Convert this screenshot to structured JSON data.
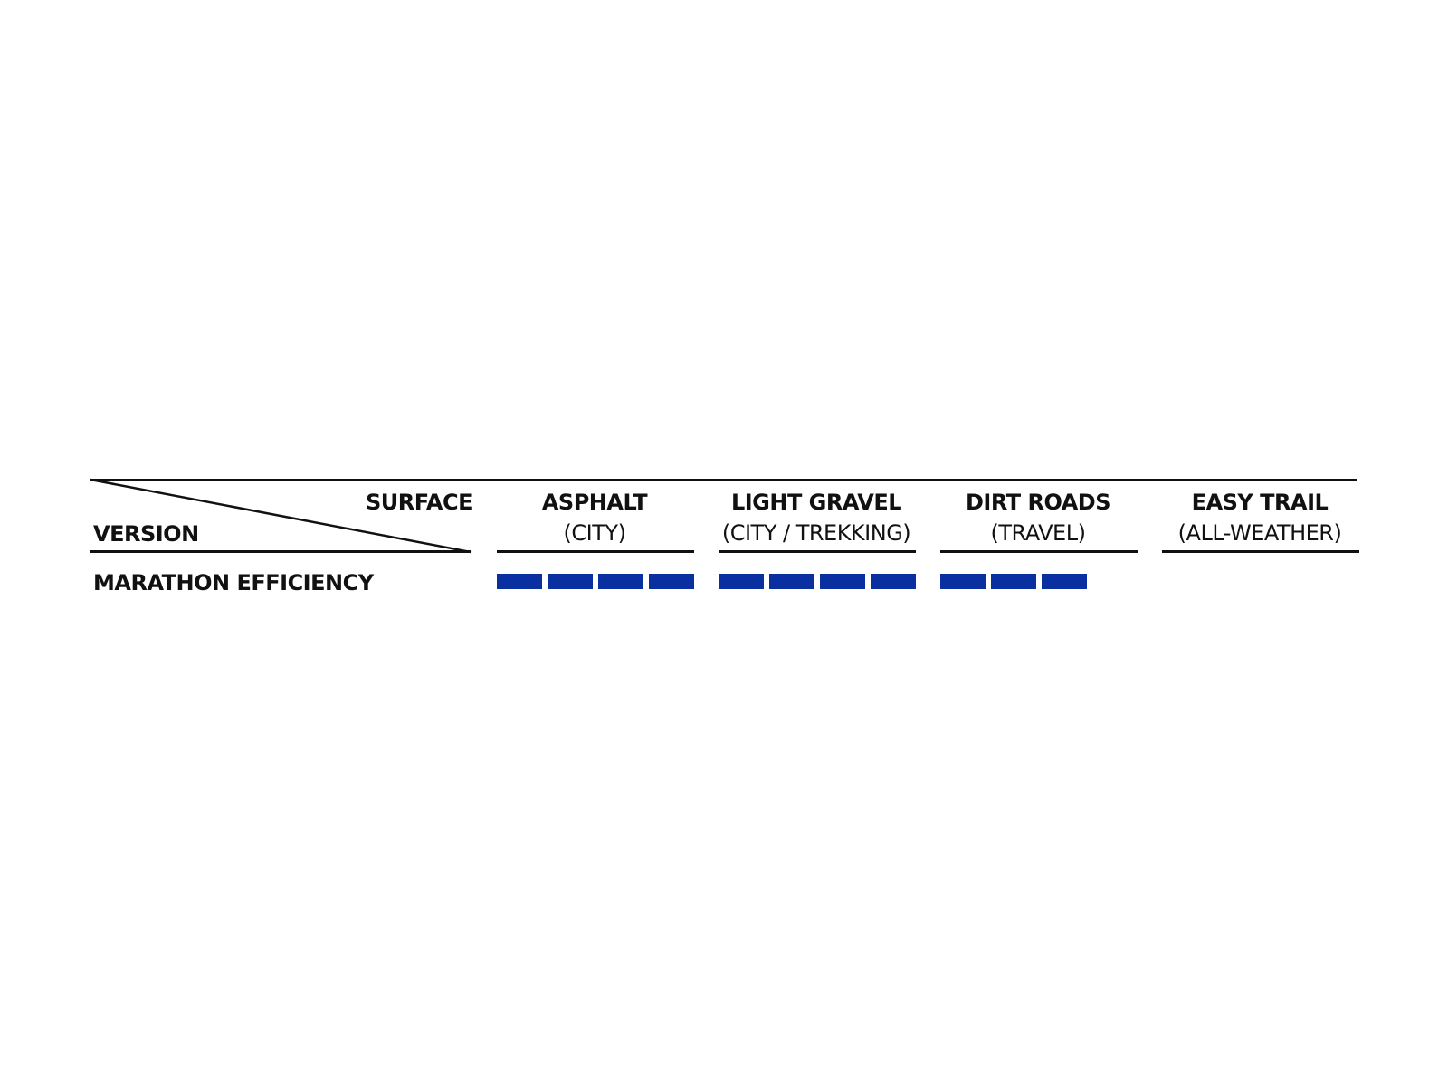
{
  "chart_data": {
    "type": "table",
    "corner": {
      "column_header": "SURFACE",
      "row_header": "VERSION"
    },
    "columns": [
      {
        "name": "ASPHALT",
        "sub": "(CITY)"
      },
      {
        "name": "LIGHT GRAVEL",
        "sub": "(CITY / TREKKING)"
      },
      {
        "name": "DIRT ROADS",
        "sub": "(TRAVEL)"
      },
      {
        "name": "EASY TRAIL",
        "sub": "(ALL-WEATHER)"
      }
    ],
    "rows": [
      {
        "label": "MARATHON EFFICIENCY",
        "values": [
          4,
          4,
          3,
          0
        ]
      }
    ],
    "max_rating": 4,
    "bar_color": "#0a2fa0"
  }
}
